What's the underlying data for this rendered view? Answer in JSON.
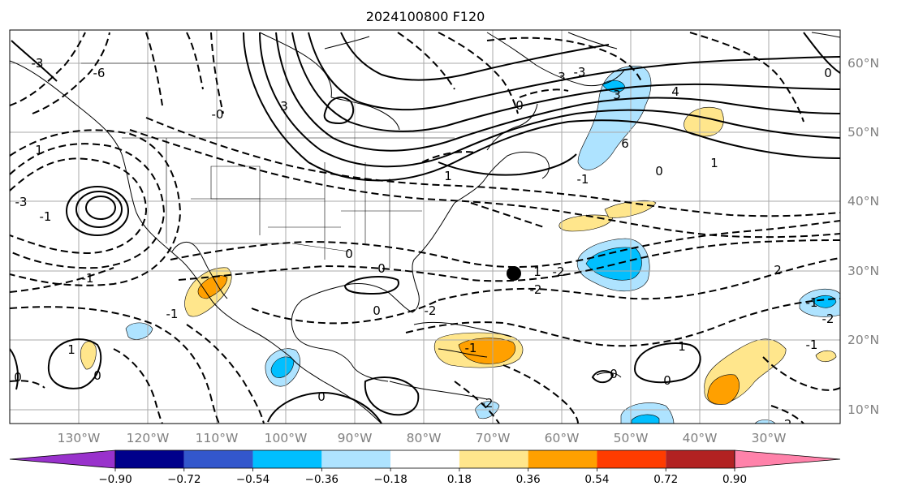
{
  "title": "2024100800 F120",
  "map": {
    "lon_labels": [
      "130°W",
      "120°W",
      "110°W",
      "100°W",
      "90°W",
      "80°W",
      "70°W",
      "60°W",
      "50°W",
      "40°W",
      "30°W"
    ],
    "lat_labels": [
      "60°N",
      "50°N",
      "40°N",
      "30°N",
      "20°N",
      "10°N"
    ],
    "marker_point": {
      "lon": -71.5,
      "lat": 29.5
    }
  },
  "colorbar": {
    "ticks": [
      "−0.90",
      "−0.72",
      "−0.54",
      "−0.36",
      "−0.18",
      "0.18",
      "0.36",
      "0.54",
      "0.72",
      "0.90"
    ],
    "colors": [
      "#9932cc",
      "#00008b",
      "#3357cc",
      "#00bfff",
      "#aee3ff",
      "#ffffff",
      "#ffe68c",
      "#ffa000",
      "#ff3c00",
      "#b22222",
      "#ff82aa"
    ]
  },
  "contour_labels": [
    "-3",
    "-6",
    "3",
    "0",
    "-3",
    "3",
    "4",
    "0",
    "6",
    "1",
    "-1",
    "-3",
    "3",
    "0",
    "2",
    "-1",
    "-2",
    "1",
    "-1",
    "0",
    "0",
    "-2",
    "-2",
    "-1",
    "1",
    "0",
    "0",
    "1",
    "-1",
    "0",
    "-2",
    "-1",
    "-2",
    "-2",
    "0",
    "-1",
    "0",
    "0",
    "1",
    "-0",
    "1"
  ],
  "colors": {
    "contour": "#000000",
    "grid": "#999999",
    "coast": "#000000",
    "label": "#808080"
  }
}
